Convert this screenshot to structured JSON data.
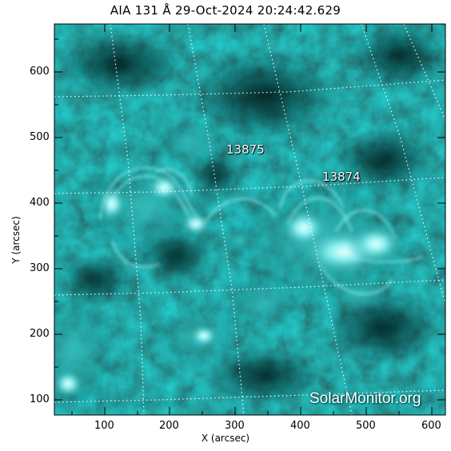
{
  "title": "AIA 131 Å 29-Oct-2024 20:24:42.629",
  "axes": {
    "xlabel": "X (arcsec)",
    "ylabel": "Y (arcsec)",
    "xticks": [
      "100",
      "200",
      "300",
      "400",
      "500",
      "600"
    ],
    "yticks": [
      "600",
      "500",
      "400",
      "300",
      "200",
      "100"
    ]
  },
  "regions": [
    {
      "number": "13875"
    },
    {
      "number": "13874"
    }
  ],
  "watermark": "SolarMonitor.org",
  "colors": {
    "background_dark": "#062e2e",
    "plasma_mid": "#1a9898",
    "plasma_bright": "#8ff5f5",
    "grid": "#ffffff"
  }
}
